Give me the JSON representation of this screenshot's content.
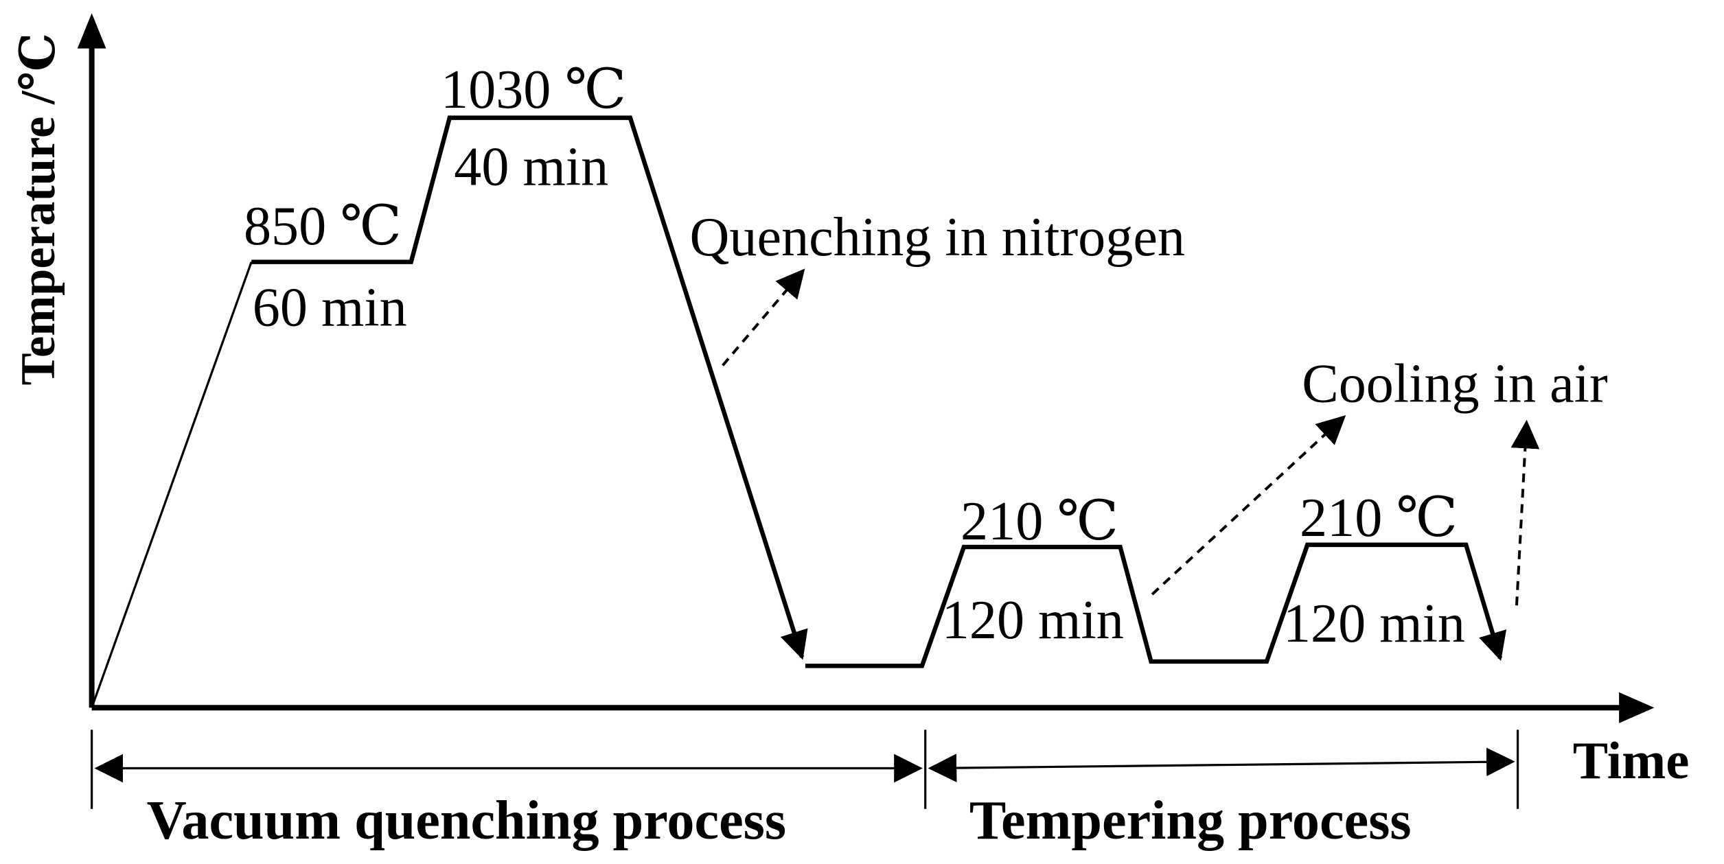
{
  "axes": {
    "y_label": "Temperature /℃",
    "x_label": "Time"
  },
  "stages": [
    {
      "temperature": "850 ℃",
      "duration": "60 min"
    },
    {
      "temperature": "1030 ℃",
      "duration": "40 min"
    },
    {
      "temperature": "210 ℃",
      "duration": "120 min"
    },
    {
      "temperature": "210 ℃",
      "duration": "120 min"
    }
  ],
  "annotations": {
    "quench": "Quenching in nitrogen",
    "cooling": "Cooling in air"
  },
  "processes": {
    "vacuum": "Vacuum quenching process",
    "tempering": "Tempering process"
  }
}
